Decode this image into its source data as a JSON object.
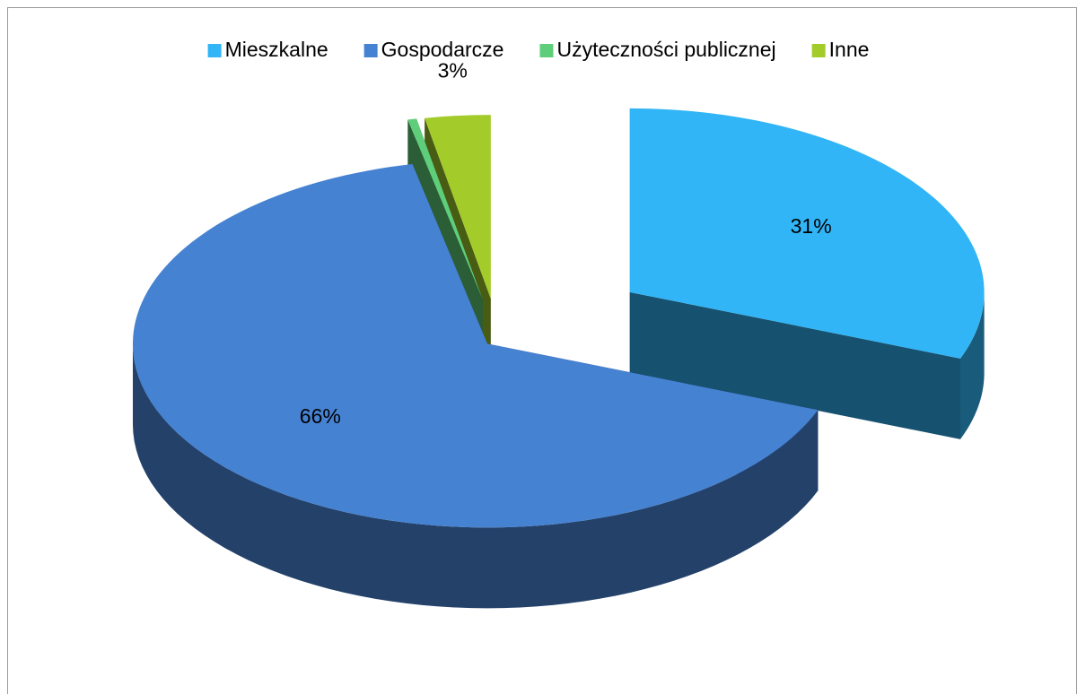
{
  "chart_data": {
    "type": "pie",
    "categories": [
      "Mieszkalne",
      "Gospodarcze",
      "Użyteczności publicznej",
      "Inne"
    ],
    "values": [
      31,
      66,
      0.4,
      3
    ],
    "value_labels": [
      "31%",
      "66%",
      null,
      "3%"
    ],
    "colors": [
      "#31b5f6",
      "#4682d2",
      "#5fce7a",
      "#a3cc2a"
    ],
    "legend": "top"
  }
}
